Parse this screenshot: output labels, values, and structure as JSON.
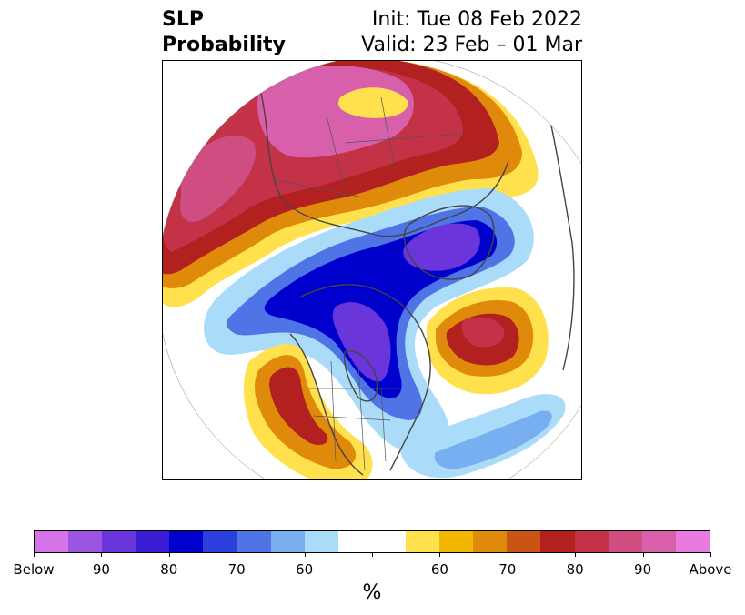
{
  "header": {
    "title_line1": "SLP",
    "title_line2": "Probability",
    "init": "Init: Tue 08 Feb 2022",
    "valid": "Valid: 23 Feb – 01 Mar"
  },
  "colorbar": {
    "colors": [
      "#d673e8",
      "#9b55e0",
      "#6a35da",
      "#3a1cd4",
      "#0000cc",
      "#2a3fdc",
      "#4f74e6",
      "#78aff0",
      "#aadcf9",
      "#ffffff",
      "#ffffff",
      "#ffe14d",
      "#f2b700",
      "#e08a0c",
      "#c85514",
      "#b22020",
      "#c43248",
      "#cf4d80",
      "#d860aa",
      "#e87ae0"
    ],
    "labels": [
      "Below",
      "90",
      "80",
      "70",
      "60",
      "60",
      "70",
      "80",
      "90",
      "Above"
    ],
    "unit": "%"
  },
  "map": {
    "palette": {
      "blue_light": "#aadcf9",
      "blue_mid": "#78aff0",
      "blue": "#4f74e6",
      "blue_dark": "#2a3fdc",
      "blue_deep": "#0000cc",
      "purple": "#6a35da",
      "yellow": "#ffe14d",
      "gold": "#f2b700",
      "orange": "#e08a0c",
      "burnt": "#c85514",
      "red": "#b22020",
      "crimson": "#c43248",
      "rose": "#cf4d80",
      "pink": "#d860aa"
    }
  }
}
